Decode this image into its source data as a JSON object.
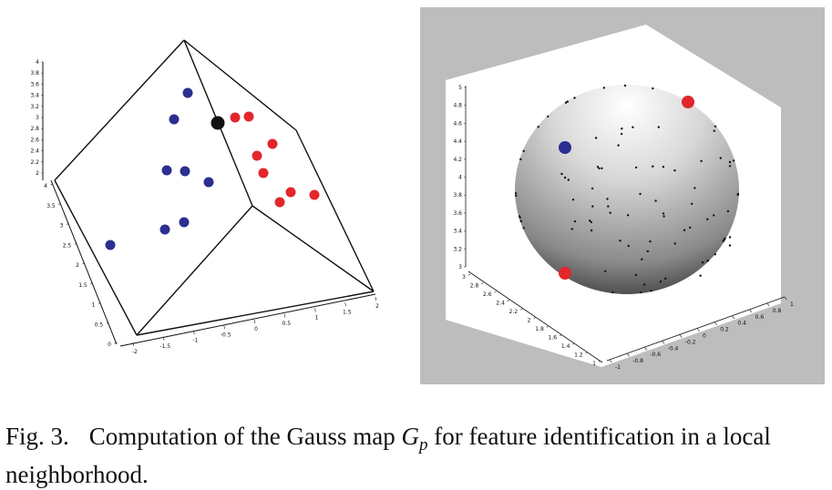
{
  "figure": {
    "caption_label": "Fig. 3.",
    "caption_text_before": "Computation of the Gauss map ",
    "caption_math_symbol": "G",
    "caption_math_sub": "p",
    "caption_text_after": " for feature identification in a local neighborhood."
  },
  "left_plot": {
    "vertical_axis_ticks": [
      "4",
      "3.8",
      "3.6",
      "3.4",
      "3.2",
      "3",
      "2.8",
      "2.6",
      "2.4",
      "2.2",
      "2"
    ],
    "depth_axis_ticks": [
      "4",
      "3.5",
      "3",
      "2.5",
      "2",
      "1.5",
      "1",
      "0.5",
      "0"
    ],
    "bottom_axis_ticks": [
      "-2",
      "-1.5",
      "-1",
      "-0.5",
      "0",
      "0.5",
      "1",
      "1.5",
      "2"
    ],
    "colors": {
      "blue": "#2b2f8f",
      "red": "#e3262b",
      "black": "#111111",
      "edge": "#111111"
    }
  },
  "right_plot": {
    "vertical_axis_ticks": [
      "5",
      "4.8",
      "4.6",
      "4.4",
      "4.2",
      "4",
      "3.8",
      "3.6",
      "3.4",
      "3.2",
      "3"
    ],
    "depth_axis_ticks": [
      "3",
      "2.8",
      "2.6",
      "2.4",
      "2.2",
      "2",
      "1.8",
      "1.6",
      "1.4",
      "1.2",
      "1"
    ],
    "bottom_axis_ticks": [
      "1",
      "0.8",
      "0.6",
      "0.4",
      "0.2",
      "0",
      "-0.2",
      "-0.4",
      "-0.6",
      "-0.8",
      "-1"
    ],
    "colors": {
      "background": "#bdbdbd",
      "panel": "#ffffff",
      "blue": "#2b2f8f",
      "red": "#e3262b"
    }
  }
}
